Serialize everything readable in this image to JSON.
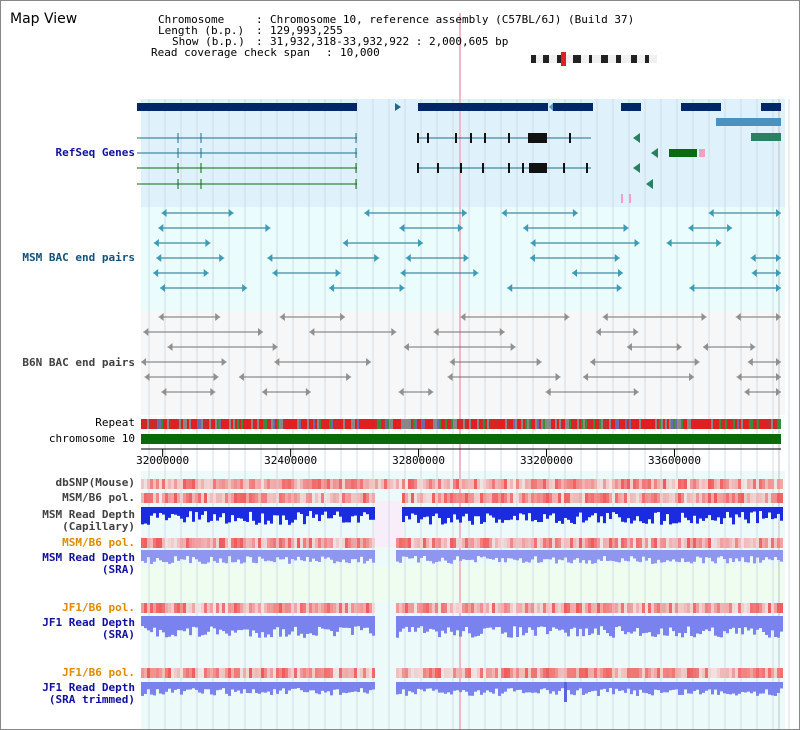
{
  "window": {
    "title": "Map View"
  },
  "info": {
    "chromosome_label": "Chromosome",
    "chromosome_value": "Chromosome 10, reference assembly (C57BL/6J) (Build 37)",
    "length_label": "Length (b.p.)",
    "length_value": "129,993,255",
    "show_label": "Show (b.p.)",
    "show_value": "31,932,318-33,932,922 : 2,000,605 bp",
    "coverage_label": "Read coverage check span",
    "coverage_value": "10,000"
  },
  "tracks": {
    "refseq": "RefSeq Genes",
    "msm_bac": "MSM BAC end pairs",
    "b6n_bac": "B6N BAC end pairs",
    "repeat": "Repeat",
    "chromosome": "chromosome 10",
    "dbsnp": "dbSNP(Mouse)",
    "msm_b6_pol_1": "MSM/B6 pol.",
    "msm_read_depth_cap_1": "MSM Read Depth",
    "msm_read_depth_cap_2": "(Capillary)",
    "msm_b6_pol_2": "MSM/B6 pol.",
    "msm_read_depth_sra_1": "MSM Read Depth",
    "msm_read_depth_sra_2": "(SRA)",
    "jf1_b6_pol_1": "JF1/B6 pol.",
    "jf1_read_depth_sra_1": "JF1 Read Depth",
    "jf1_read_depth_sra_2": "(SRA)",
    "jf1_b6_pol_2": "JF1/B6 pol.",
    "jf1_read_depth_trim_1": "JF1 Read Depth",
    "jf1_read_depth_trim_2": "(SRA trimmed)"
  },
  "axis": {
    "range_bp": [
      31932318,
      33932922
    ],
    "ticks": [
      {
        "pos": 32000000,
        "label": "32000000"
      },
      {
        "pos": 32400000,
        "label": "32400000"
      },
      {
        "pos": 32800000,
        "label": "32800000"
      },
      {
        "pos": 33200000,
        "label": "33200000"
      },
      {
        "pos": 33600000,
        "label": "33600000"
      }
    ]
  },
  "colors": {
    "refseq_bg": "#dff1fb",
    "msm_bg": "#eafcfc",
    "gene_dark": "#002868",
    "gene_teal": "#1a6e8c",
    "gene_green": "#0a6a10",
    "repeat_red": "#e02020",
    "chromosome_green": "#0a6a0a",
    "depth_blue": "#1a2be0",
    "depth_lavender": "#7a82ee",
    "pol_red": "#f05050"
  },
  "ideogram": {
    "highlight": "red-marker"
  }
}
